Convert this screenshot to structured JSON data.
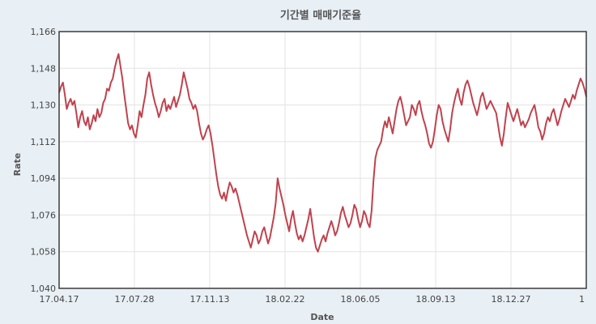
{
  "chart_data": {
    "type": "line",
    "title": "기간별 매매기준율",
    "xlabel": "Date",
    "ylabel": "Rate",
    "ylim": [
      1040,
      1166
    ],
    "yticks": [
      "1,040",
      "1,058",
      "1,076",
      "1,094",
      "1,112",
      "1,130",
      "1,148",
      "1,166"
    ],
    "ytick_values": [
      1040,
      1058,
      1076,
      1094,
      1112,
      1130,
      1148,
      1166
    ],
    "xticks": [
      "17.04.17",
      "17.07.28",
      "17.11.13",
      "18.02.22",
      "18.06.05",
      "18.09.13",
      "18.12.27",
      "1"
    ],
    "grid": true,
    "line_color": "#c0424d",
    "plot_background": "#ffffff",
    "page_background": "#e8f0f6",
    "series": [
      {
        "values": [
          1136,
          1139,
          1141,
          1135,
          1128,
          1131,
          1133,
          1130,
          1132,
          1126,
          1119,
          1124,
          1127,
          1122,
          1120,
          1124,
          1118,
          1121,
          1125,
          1122,
          1128,
          1124,
          1126,
          1131,
          1133,
          1138,
          1137,
          1141,
          1143,
          1148,
          1152,
          1155,
          1149,
          1143,
          1135,
          1128,
          1121,
          1118,
          1120,
          1116,
          1114,
          1120,
          1127,
          1124,
          1130,
          1135,
          1143,
          1146,
          1140,
          1135,
          1131,
          1128,
          1124,
          1127,
          1131,
          1133,
          1127,
          1130,
          1128,
          1131,
          1134,
          1129,
          1132,
          1135,
          1140,
          1146,
          1142,
          1138,
          1133,
          1131,
          1128,
          1130,
          1127,
          1121,
          1116,
          1113,
          1115,
          1118,
          1120,
          1116,
          1110,
          1103,
          1096,
          1090,
          1086,
          1084,
          1087,
          1083,
          1088,
          1092,
          1090,
          1087,
          1089,
          1086,
          1082,
          1078,
          1074,
          1070,
          1066,
          1063,
          1060,
          1064,
          1068,
          1066,
          1062,
          1064,
          1068,
          1070,
          1066,
          1062,
          1065,
          1070,
          1075,
          1082,
          1094,
          1089,
          1085,
          1081,
          1076,
          1072,
          1068,
          1074,
          1078,
          1072,
          1067,
          1064,
          1066,
          1063,
          1066,
          1070,
          1074,
          1079,
          1072,
          1065,
          1060,
          1058,
          1061,
          1064,
          1066,
          1063,
          1067,
          1070,
          1073,
          1070,
          1066,
          1068,
          1072,
          1077,
          1080,
          1076,
          1073,
          1070,
          1072,
          1076,
          1081,
          1079,
          1074,
          1070,
          1073,
          1078,
          1076,
          1072,
          1070,
          1078,
          1093,
          1104,
          1108,
          1110,
          1112,
          1118,
          1122,
          1119,
          1124,
          1120,
          1116,
          1122,
          1128,
          1132,
          1134,
          1130,
          1125,
          1120,
          1122,
          1124,
          1130,
          1128,
          1125,
          1130,
          1132,
          1127,
          1123,
          1120,
          1116,
          1111,
          1109,
          1112,
          1118,
          1125,
          1130,
          1128,
          1122,
          1118,
          1115,
          1112,
          1118,
          1126,
          1131,
          1135,
          1138,
          1133,
          1130,
          1136,
          1140,
          1142,
          1139,
          1135,
          1131,
          1128,
          1125,
          1129,
          1134,
          1136,
          1132,
          1128,
          1130,
          1132,
          1130,
          1128,
          1126,
          1120,
          1114,
          1110,
          1116,
          1124,
          1131,
          1128,
          1125,
          1122,
          1125,
          1128,
          1124,
          1120,
          1122,
          1119,
          1121,
          1123,
          1126,
          1128,
          1130,
          1125,
          1119,
          1117,
          1113,
          1116,
          1121,
          1124,
          1122,
          1126,
          1128,
          1124,
          1120,
          1123,
          1127,
          1130,
          1133,
          1131,
          1129,
          1132,
          1135,
          1133,
          1137,
          1140,
          1143,
          1141,
          1138,
          1134
        ]
      }
    ]
  }
}
